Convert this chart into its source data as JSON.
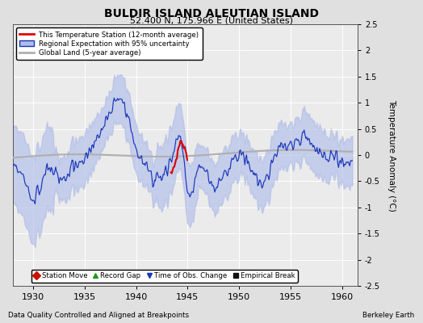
{
  "title": "BULDIR ISLAND ALEUTIAN ISLAND",
  "subtitle": "52.400 N, 175.966 E (United States)",
  "xlabel_left": "Data Quality Controlled and Aligned at Breakpoints",
  "xlabel_right": "Berkeley Earth",
  "ylabel": "Temperature Anomaly (°C)",
  "xlim": [
    1928.0,
    1961.5
  ],
  "ylim": [
    -2.5,
    2.5
  ],
  "yticks": [
    -2.5,
    -2,
    -1.5,
    -1,
    -0.5,
    0,
    0.5,
    1,
    1.5,
    2,
    2.5
  ],
  "xticks": [
    1930,
    1935,
    1940,
    1945,
    1950,
    1955,
    1960
  ],
  "background_color": "#e0e0e0",
  "plot_bg_color": "#ebebeb",
  "blue_line_color": "#1a35bb",
  "blue_fill_color": "#b0bde8",
  "red_line_color": "#dd0000",
  "gray_line_color": "#b0b0b0",
  "legend_entries": [
    "This Temperature Station (12-month average)",
    "Regional Expectation with 95% uncertainty",
    "Global Land (5-year average)"
  ],
  "bottom_legend": [
    {
      "marker": "D",
      "color": "#cc1100",
      "label": "Station Move"
    },
    {
      "marker": "^",
      "color": "#229922",
      "label": "Record Gap"
    },
    {
      "marker": "v",
      "color": "#1a35bb",
      "label": "Time of Obs. Change"
    },
    {
      "marker": "s",
      "color": "#111111",
      "label": "Empirical Break"
    }
  ]
}
